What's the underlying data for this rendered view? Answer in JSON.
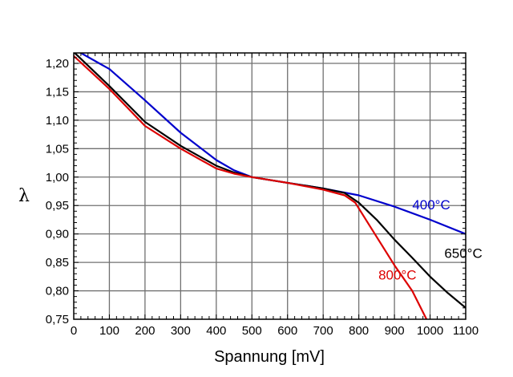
{
  "chart_data": {
    "type": "line",
    "title": "",
    "xlabel": "Spannung [mV]",
    "ylabel": "λ",
    "xlim": [
      0,
      1100
    ],
    "ylim": [
      0.75,
      1.22
    ],
    "grid": true,
    "x_ticks": [
      0,
      100,
      200,
      300,
      400,
      500,
      600,
      700,
      800,
      900,
      1000,
      1100
    ],
    "x_tick_labels": [
      "0",
      "100",
      "200",
      "300",
      "400",
      "500",
      "600",
      "700",
      "800",
      "900",
      "1000",
      "1100"
    ],
    "y_ticks": [
      0.75,
      0.8,
      0.85,
      0.9,
      0.95,
      1.0,
      1.05,
      1.1,
      1.15,
      1.2
    ],
    "y_tick_labels": [
      "0,75",
      "0,80",
      "0,85",
      "0,90",
      "0,95",
      "1,00",
      "1,05",
      "1,10",
      "1,15",
      "1,20"
    ],
    "series": [
      {
        "name": "400°C",
        "color": "#0000cc",
        "x": [
          15,
          100,
          200,
          300,
          400,
          450,
          500,
          600,
          700,
          800,
          900,
          1000,
          1100
        ],
        "y": [
          1.22,
          1.19,
          1.135,
          1.078,
          1.03,
          1.012,
          1.0,
          0.99,
          0.98,
          0.968,
          0.948,
          0.925,
          0.9
        ]
      },
      {
        "name": "650°C",
        "color": "#000000",
        "x": [
          0,
          100,
          200,
          300,
          400,
          450,
          500,
          600,
          700,
          760,
          800,
          850,
          900,
          950,
          1000,
          1050,
          1100
        ],
        "y": [
          1.22,
          1.16,
          1.097,
          1.055,
          1.02,
          1.008,
          1.0,
          0.99,
          0.98,
          0.972,
          0.955,
          0.925,
          0.89,
          0.858,
          0.825,
          0.796,
          0.77
        ],
        "label_pos": [
          1040,
          0.855
        ]
      },
      {
        "name": "800°C",
        "color": "#dd0000",
        "x": [
          0,
          100,
          200,
          300,
          400,
          450,
          500,
          600,
          700,
          760,
          790,
          820,
          860,
          900,
          950,
          990
        ],
        "y": [
          1.213,
          1.155,
          1.09,
          1.05,
          1.015,
          1.006,
          1.0,
          0.99,
          0.978,
          0.968,
          0.955,
          0.925,
          0.885,
          0.845,
          0.8,
          0.75
        ],
        "label_pos": [
          855,
          0.822
        ]
      }
    ],
    "annotations": [
      {
        "text": "400°C",
        "color": "#0000cc",
        "x": 950,
        "y": 0.943
      },
      {
        "text": "650°C",
        "color": "#000000",
        "x": 1040,
        "y": 0.858
      },
      {
        "text": "800°C",
        "color": "#dd0000",
        "x": 855,
        "y": 0.82
      }
    ]
  }
}
